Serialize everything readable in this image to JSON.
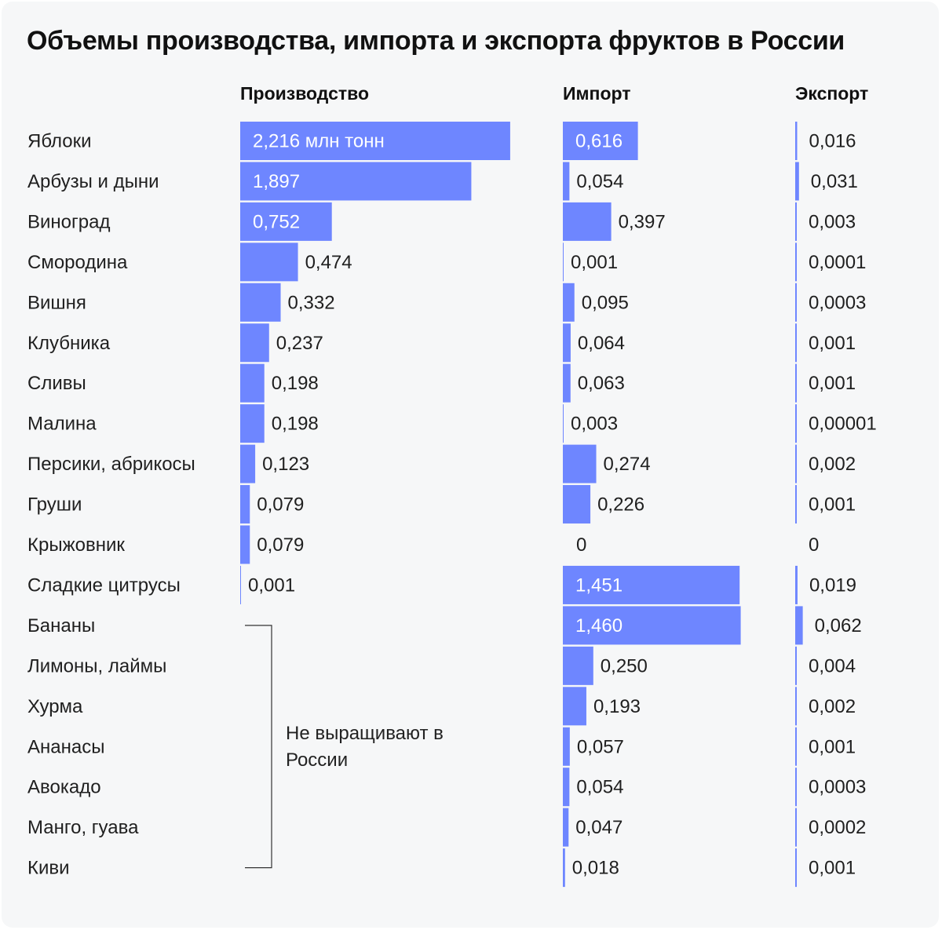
{
  "title": "Объемы производства, импорта и экспорта фруктов в России",
  "note": "Не выращивают в России",
  "colors": {
    "bar": "#6e86ff",
    "text": "#1f1f1f",
    "bar_label": "#ffffff",
    "bg": "#f6f7f8"
  },
  "chart_data": {
    "type": "bar",
    "unit": "млн тонн",
    "columns": [
      "Производство",
      "Импорт",
      "Экспорт"
    ],
    "categories": [
      "Яблоки",
      "Арбузы и дыни",
      "Виноград",
      "Смородина",
      "Вишня",
      "Клубника",
      "Сливы",
      "Малина",
      "Персики, абрикосы",
      "Груши",
      "Крыжовник",
      "Сладкие цитрусы",
      "Бананы",
      "Лимоны, лаймы",
      "Хурма",
      "Ананасы",
      "Авокадо",
      "Манго, гуава",
      "Киви"
    ],
    "series": [
      {
        "name": "Производство",
        "values": [
          2.216,
          1.897,
          0.752,
          0.474,
          0.332,
          0.237,
          0.198,
          0.198,
          0.123,
          0.079,
          0.079,
          0.001,
          null,
          null,
          null,
          null,
          null,
          null,
          null
        ],
        "labels": [
          "2,216 млн тонн",
          "1,897",
          "0,752",
          "0,474",
          "0,332",
          "0,237",
          "0,198",
          "0,198",
          "0,123",
          "0,079",
          "0,079",
          "0,001",
          "",
          "",
          "",
          "",
          "",
          "",
          ""
        ]
      },
      {
        "name": "Импорт",
        "values": [
          0.616,
          0.054,
          0.397,
          0.001,
          0.095,
          0.064,
          0.063,
          0.003,
          0.274,
          0.226,
          0,
          1.451,
          1.46,
          0.25,
          0.193,
          0.057,
          0.054,
          0.047,
          0.018
        ],
        "labels": [
          "0,616",
          "0,054",
          "0,397",
          "0,001",
          "0,095",
          "0,064",
          "0,063",
          "0,003",
          "0,274",
          "0,226",
          "0",
          "1,451",
          "1,460",
          "0,250",
          "0,193",
          "0,057",
          "0,054",
          "0,047",
          "0,018"
        ]
      },
      {
        "name": "Экспорт",
        "values": [
          0.016,
          0.031,
          0.003,
          0.0001,
          0.0003,
          0.001,
          0.001,
          1e-05,
          0.002,
          0.001,
          0,
          0.019,
          0.062,
          0.004,
          0.002,
          0.001,
          0.0003,
          0.0002,
          0.001
        ],
        "labels": [
          "0,016",
          "0,031",
          "0,003",
          "0,0001",
          "0,0003",
          "0,001",
          "0,001",
          "0,00001",
          "0,002",
          "0,001",
          "0",
          "0,019",
          "0,062",
          "0,004",
          "0,002",
          "0,001",
          "0,0003",
          "0,0002",
          "0,001"
        ]
      }
    ]
  }
}
